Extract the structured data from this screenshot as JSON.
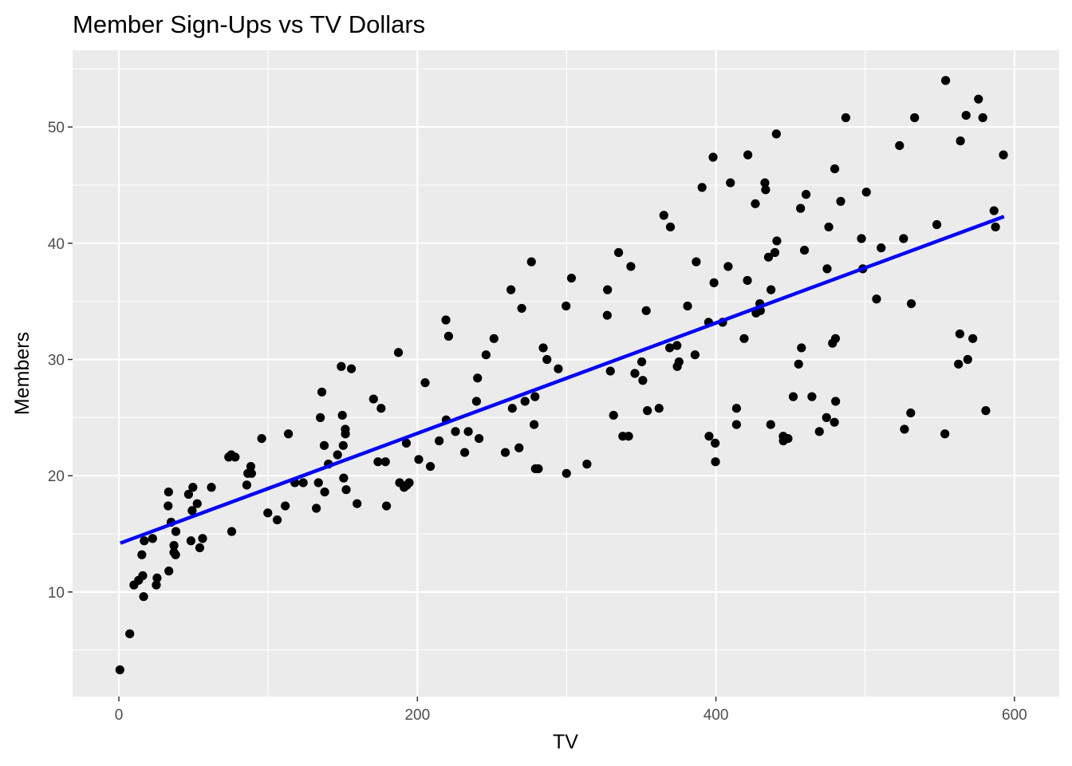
{
  "chart_data": {
    "type": "scatter",
    "title": "Member Sign-Ups vs TV Dollars",
    "xlabel": "TV",
    "ylabel": "Members",
    "xlim": [
      -31,
      630
    ],
    "ylim": [
      1,
      56.6
    ],
    "x_ticks": [
      0,
      200,
      400,
      600
    ],
    "y_ticks": [
      10,
      20,
      30,
      40,
      50
    ],
    "x_tick_labels": [
      "0",
      "200",
      "400",
      "600"
    ],
    "y_tick_labels": [
      "10",
      "20",
      "30",
      "40",
      "50"
    ],
    "grid": true,
    "legend": "none",
    "colors": {
      "panel": "#ebebeb",
      "grid": "#ffffff",
      "points": "#000000",
      "fit_line": "#0000ff"
    },
    "fit_line": {
      "x": [
        1,
        593
      ],
      "y": [
        14.2,
        42.3
      ]
    },
    "points": [
      [
        0.7,
        3.3
      ],
      [
        7.3,
        6.4
      ],
      [
        10.1,
        10.6
      ],
      [
        13.2,
        11.0
      ],
      [
        15.4,
        13.2
      ],
      [
        16.0,
        11.4
      ],
      [
        16.6,
        9.6
      ],
      [
        17.0,
        14.4
      ],
      [
        22.6,
        14.6
      ],
      [
        25.1,
        10.6
      ],
      [
        25.6,
        11.2
      ],
      [
        33.3,
        18.6
      ],
      [
        33.0,
        17.4
      ],
      [
        33.5,
        11.8
      ],
      [
        35.0,
        16.0
      ],
      [
        36.9,
        14.0
      ],
      [
        36.9,
        13.4
      ],
      [
        38.0,
        13.2
      ],
      [
        38.2,
        15.2
      ],
      [
        46.7,
        18.4
      ],
      [
        48.3,
        14.4
      ],
      [
        49.6,
        19.0
      ],
      [
        49.1,
        17.0
      ],
      [
        52.5,
        17.6
      ],
      [
        54.2,
        13.8
      ],
      [
        56.1,
        14.6
      ],
      [
        62.0,
        19.0
      ],
      [
        73.6,
        21.6
      ],
      [
        75.3,
        21.8
      ],
      [
        75.6,
        15.2
      ],
      [
        77.9,
        21.6
      ],
      [
        85.7,
        19.2
      ],
      [
        86.4,
        20.2
      ],
      [
        88.4,
        20.8
      ],
      [
        88.9,
        20.2
      ],
      [
        95.7,
        23.2
      ],
      [
        99.8,
        16.8
      ],
      [
        106.1,
        16.2
      ],
      [
        111.5,
        17.4
      ],
      [
        113.6,
        23.6
      ],
      [
        117.9,
        19.4
      ],
      [
        123.5,
        19.4
      ],
      [
        132.3,
        17.2
      ],
      [
        133.7,
        19.4
      ],
      [
        135.0,
        25.0
      ],
      [
        136.0,
        27.2
      ],
      [
        137.6,
        22.6
      ],
      [
        137.9,
        18.6
      ],
      [
        140.4,
        21.0
      ],
      [
        146.5,
        21.8
      ],
      [
        149.0,
        29.4
      ],
      [
        149.7,
        25.2
      ],
      [
        150.3,
        22.6
      ],
      [
        150.6,
        19.8
      ],
      [
        151.7,
        24.0
      ],
      [
        151.8,
        23.6
      ],
      [
        152.3,
        18.8
      ],
      [
        155.8,
        29.2
      ],
      [
        159.6,
        17.6
      ],
      [
        170.6,
        26.6
      ],
      [
        173.6,
        21.2
      ],
      [
        175.7,
        25.8
      ],
      [
        178.6,
        21.2
      ],
      [
        179.3,
        17.4
      ],
      [
        187.3,
        30.6
      ],
      [
        188.1,
        19.4
      ],
      [
        191.1,
        19.0
      ],
      [
        192.6,
        22.8
      ],
      [
        193.0,
        19.2
      ],
      [
        194.5,
        19.4
      ],
      [
        200.9,
        21.4
      ],
      [
        205.2,
        28.0
      ],
      [
        208.7,
        20.8
      ],
      [
        214.6,
        23.0
      ],
      [
        219.1,
        33.4
      ],
      [
        219.3,
        24.8
      ],
      [
        220.9,
        32.0
      ],
      [
        225.5,
        23.8
      ],
      [
        231.7,
        22.0
      ],
      [
        234.1,
        23.8
      ],
      [
        239.6,
        26.4
      ],
      [
        240.3,
        28.4
      ],
      [
        241.3,
        23.2
      ],
      [
        246.0,
        30.4
      ],
      [
        251.3,
        31.8
      ],
      [
        258.9,
        22.0
      ],
      [
        262.7,
        36.0
      ],
      [
        263.6,
        25.8
      ],
      [
        268.1,
        22.4
      ],
      [
        269.9,
        34.4
      ],
      [
        272.1,
        26.4
      ],
      [
        276.4,
        38.4
      ],
      [
        278.2,
        24.4
      ],
      [
        278.8,
        26.8
      ],
      [
        279.1,
        20.6
      ],
      [
        281.0,
        20.6
      ],
      [
        284.3,
        31.0
      ],
      [
        286.8,
        30.0
      ],
      [
        294.4,
        29.2
      ],
      [
        299.6,
        34.6
      ],
      [
        299.9,
        20.2
      ],
      [
        303.2,
        37.0
      ],
      [
        313.6,
        21.0
      ],
      [
        327.2,
        33.8
      ],
      [
        327.4,
        36.0
      ],
      [
        329.3,
        29.0
      ],
      [
        331.4,
        25.2
      ],
      [
        334.8,
        39.2
      ],
      [
        337.6,
        23.4
      ],
      [
        341.5,
        23.4
      ],
      [
        343.0,
        38.0
      ],
      [
        345.7,
        28.8
      ],
      [
        350.3,
        29.8
      ],
      [
        351.0,
        28.2
      ],
      [
        353.3,
        34.2
      ],
      [
        354.1,
        25.6
      ],
      [
        361.9,
        25.8
      ],
      [
        365.1,
        42.4
      ],
      [
        369.0,
        31.0
      ],
      [
        369.5,
        41.4
      ],
      [
        373.9,
        31.2
      ],
      [
        374.1,
        29.4
      ],
      [
        375.3,
        29.8
      ],
      [
        381.0,
        34.6
      ],
      [
        386.0,
        30.4
      ],
      [
        386.8,
        38.4
      ],
      [
        390.7,
        44.8
      ],
      [
        395.1,
        33.2
      ],
      [
        395.4,
        23.4
      ],
      [
        398.1,
        47.4
      ],
      [
        398.7,
        36.6
      ],
      [
        399.5,
        22.8
      ],
      [
        399.7,
        21.2
      ],
      [
        404.5,
        33.2
      ],
      [
        408.2,
        38.0
      ],
      [
        409.7,
        45.2
      ],
      [
        413.8,
        25.8
      ],
      [
        413.8,
        24.4
      ],
      [
        418.9,
        31.8
      ],
      [
        421.1,
        36.8
      ],
      [
        421.4,
        47.6
      ],
      [
        426.4,
        43.4
      ],
      [
        426.9,
        34.0
      ],
      [
        429.4,
        34.8
      ],
      [
        429.8,
        34.2
      ],
      [
        432.8,
        45.2
      ],
      [
        433.3,
        44.6
      ],
      [
        435.2,
        38.8
      ],
      [
        436.7,
        24.4
      ],
      [
        436.9,
        36.0
      ],
      [
        439.5,
        39.2
      ],
      [
        440.5,
        49.4
      ],
      [
        440.8,
        40.2
      ],
      [
        445.1,
        23.4
      ],
      [
        445.2,
        23.0
      ],
      [
        448.3,
        23.2
      ],
      [
        451.8,
        26.8
      ],
      [
        455.4,
        29.6
      ],
      [
        456.7,
        43.0
      ],
      [
        457.3,
        31.0
      ],
      [
        459.3,
        39.4
      ],
      [
        460.4,
        44.2
      ],
      [
        464.3,
        26.8
      ],
      [
        469.3,
        23.8
      ],
      [
        474.1,
        25.0
      ],
      [
        474.5,
        37.8
      ],
      [
        475.6,
        41.4
      ],
      [
        478.1,
        31.4
      ],
      [
        479.4,
        24.6
      ],
      [
        479.6,
        46.4
      ],
      [
        480.1,
        31.8
      ],
      [
        480.2,
        26.4
      ],
      [
        483.6,
        43.6
      ],
      [
        487.0,
        50.8
      ],
      [
        497.5,
        40.4
      ],
      [
        498.4,
        37.8
      ],
      [
        500.8,
        44.4
      ],
      [
        507.6,
        35.2
      ],
      [
        510.7,
        39.6
      ],
      [
        523.0,
        48.4
      ],
      [
        525.7,
        40.4
      ],
      [
        526.3,
        24.0
      ],
      [
        530.5,
        25.4
      ],
      [
        530.9,
        34.8
      ],
      [
        533.1,
        50.8
      ],
      [
        548.0,
        41.6
      ],
      [
        553.4,
        23.6
      ],
      [
        553.9,
        54.0
      ],
      [
        562.5,
        29.6
      ],
      [
        563.4,
        32.2
      ],
      [
        563.8,
        48.8
      ],
      [
        567.6,
        51.0
      ],
      [
        568.7,
        30.0
      ],
      [
        572.1,
        31.8
      ],
      [
        575.9,
        52.4
      ],
      [
        578.8,
        50.8
      ],
      [
        580.8,
        25.6
      ],
      [
        586.3,
        42.8
      ],
      [
        587.3,
        41.4
      ],
      [
        592.6,
        47.6
      ]
    ]
  }
}
